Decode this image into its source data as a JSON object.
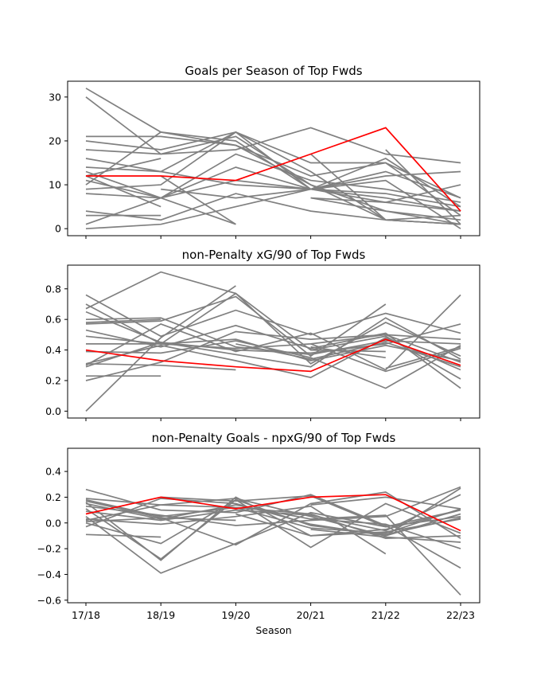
{
  "chart_data": [
    {
      "type": "line",
      "title": "Goals per Season of Top Fwds",
      "xlabel": "",
      "ylabel": "",
      "categories": [
        "17/18",
        "18/19",
        "19/20",
        "20/21",
        "21/22",
        "22/23"
      ],
      "ylim": [
        -1.6,
        33.6
      ],
      "yticks": [
        0,
        10,
        20,
        30
      ],
      "ytick_labels": [
        "0",
        "10",
        "20",
        "30"
      ],
      "show_xtick_labels": false,
      "highlight": {
        "name": "highlighted player",
        "color": "#ff0000",
        "values": [
          12,
          12,
          11,
          17,
          23,
          4
        ]
      },
      "series": [
        {
          "values": [
            32,
            22,
            19,
            10,
            4,
            1
          ]
        },
        {
          "values": [
            30,
            17,
            21,
            10,
            2,
            1
          ]
        },
        {
          "values": [
            21,
            21,
            19,
            12,
            15,
            7
          ]
        },
        {
          "values": [
            20,
            18,
            22,
            9,
            8,
            5
          ]
        },
        {
          "values": [
            18,
            17,
            18,
            23,
            17,
            15
          ]
        },
        {
          "values": [
            16,
            13,
            10,
            9,
            6,
            4
          ]
        },
        {
          "values": [
            14,
            13,
            22,
            15,
            15,
            3
          ]
        },
        {
          "values": [
            13,
            7,
            17,
            11,
            9,
            6
          ]
        },
        {
          "values": [
            12,
            5,
            null,
            null,
            null,
            null
          ]
        },
        {
          "values": [
            11,
            7,
            1,
            null,
            null,
            null
          ]
        },
        {
          "values": [
            10,
            22,
            20,
            9,
            7,
            4
          ]
        },
        {
          "values": [
            9,
            10,
            22,
            13,
            2,
            1
          ]
        },
        {
          "values": [
            8,
            7,
            11,
            9,
            13,
            7
          ]
        },
        {
          "values": [
            4,
            2,
            8,
            4,
            2,
            1
          ]
        },
        {
          "values": [
            3,
            3,
            null,
            null,
            null,
            null
          ]
        },
        {
          "values": [
            1,
            7,
            14,
            9,
            11,
            0
          ]
        },
        {
          "values": [
            0,
            1,
            5,
            9,
            16,
            5
          ]
        },
        {
          "values": [
            12,
            16,
            null,
            null,
            null,
            null
          ]
        },
        {
          "values": [
            null,
            9,
            7,
            9,
            12,
            13
          ]
        },
        {
          "values": [
            null,
            null,
            null,
            7,
            6,
            10
          ]
        },
        {
          "values": [
            null,
            null,
            null,
            7,
            4,
            2
          ]
        },
        {
          "values": [
            null,
            null,
            null,
            17,
            2,
            3
          ]
        },
        {
          "values": [
            null,
            null,
            null,
            null,
            18,
            1
          ]
        },
        {
          "values": [
            null,
            12,
            1,
            null,
            null,
            null
          ]
        }
      ]
    },
    {
      "type": "line",
      "title": "non-Penalty xG/90 of Top Fwds",
      "xlabel": "",
      "ylabel": "",
      "categories": [
        "17/18",
        "18/19",
        "19/20",
        "20/21",
        "21/22",
        "22/23"
      ],
      "ylim": [
        -0.045,
        0.955
      ],
      "yticks": [
        0.0,
        0.2,
        0.4,
        0.6,
        0.8
      ],
      "ytick_labels": [
        "0.0",
        "0.2",
        "0.4",
        "0.6",
        "0.8"
      ],
      "show_xtick_labels": false,
      "highlight": {
        "name": "highlighted player",
        "color": "#ff0000",
        "values": [
          0.4,
          0.33,
          0.29,
          0.26,
          0.47,
          0.3
        ]
      },
      "series": [
        {
          "values": [
            0.76,
            0.49,
            0.66,
            0.5,
            0.64,
            0.51
          ]
        },
        {
          "values": [
            0.7,
            0.44,
            0.77,
            0.4,
            0.49,
            0.21
          ]
        },
        {
          "values": [
            0.67,
            0.91,
            0.77,
            0.31,
            0.58,
            0.36
          ]
        },
        {
          "values": [
            0.65,
            0.45,
            0.37,
            0.29,
            0.61,
            0.34
          ]
        },
        {
          "values": [
            0.6,
            0.61,
            0.42,
            0.37,
            0.46,
            0.44
          ]
        },
        {
          "values": [
            0.58,
            0.6,
            null,
            null,
            null,
            null
          ]
        },
        {
          "values": [
            0.57,
            0.59,
            0.75,
            0.36,
            0.7,
            null
          ]
        },
        {
          "values": [
            0.53,
            0.42,
            0.56,
            0.41,
            0.51,
            0.15
          ]
        },
        {
          "values": [
            0.49,
            0.44,
            0.47,
            0.33,
            0.43,
            0.33
          ]
        },
        {
          "values": [
            0.44,
            0.44,
            0.41,
            0.44,
            0.5,
            0.47
          ]
        },
        {
          "values": [
            0.39,
            0.38,
            0.46,
            0.35,
            0.15,
            0.43
          ]
        },
        {
          "values": [
            0.31,
            0.43,
            0.33,
            0.22,
            0.48,
            0.27
          ]
        },
        {
          "values": [
            0.3,
            0.57,
            0.39,
            0.51,
            0.27,
            0.76
          ]
        },
        {
          "values": [
            0.31,
            0.3,
            0.27,
            null,
            null,
            null
          ]
        },
        {
          "values": [
            0.29,
            0.45,
            0.4,
            0.38,
            0.44,
            0.57
          ]
        },
        {
          "values": [
            0.23,
            0.23,
            null,
            null,
            null,
            null
          ]
        },
        {
          "values": [
            0.2,
            0.32,
            0.52,
            0.47,
            0.5,
            0.32
          ]
        },
        {
          "values": [
            0.0,
            0.48,
            0.82,
            null,
            null,
            null
          ]
        },
        {
          "values": [
            null,
            null,
            null,
            0.44,
            0.26,
            0.41
          ]
        },
        {
          "values": [
            null,
            null,
            null,
            0.42,
            0.35,
            null
          ]
        },
        {
          "values": [
            null,
            null,
            null,
            0.4,
            0.39,
            null
          ]
        },
        {
          "values": [
            null,
            null,
            null,
            null,
            0.28,
            0.42
          ]
        },
        {
          "values": [
            null,
            null,
            0.44,
            0.34,
            0.45,
            0.29
          ]
        }
      ]
    },
    {
      "type": "line",
      "title": "non-Penalty Goals - npxG/90 of Top Fwds",
      "xlabel": "Season",
      "ylabel": "",
      "categories": [
        "17/18",
        "18/19",
        "19/20",
        "20/21",
        "21/22",
        "22/23"
      ],
      "ylim": [
        -0.62,
        0.58
      ],
      "yticks": [
        -0.6,
        -0.4,
        -0.2,
        0.0,
        0.2,
        0.4
      ],
      "ytick_labels": [
        "−0.6",
        "−0.4",
        "−0.2",
        "0.0",
        "0.2",
        "0.4"
      ],
      "show_xtick_labels": true,
      "highlight": {
        "name": "highlighted player",
        "color": "#ff0000",
        "values": [
          0.07,
          0.2,
          0.11,
          0.2,
          0.22,
          -0.06
        ]
      },
      "series": [
        {
          "values": [
            0.26,
            0.1,
            0.08,
            0.22,
            -0.02,
            -0.35
          ]
        },
        {
          "values": [
            0.19,
            0.14,
            0.19,
            0.05,
            -0.1,
            0.27
          ]
        },
        {
          "values": [
            0.18,
            0.05,
            0.12,
            -0.04,
            -0.08,
            0.11
          ]
        },
        {
          "values": [
            0.17,
            0.04,
            -0.17,
            0.15,
            0.24,
            -0.12
          ]
        },
        {
          "values": [
            0.16,
            -0.29,
            0.2,
            -0.1,
            -0.05,
            0.1
          ]
        },
        {
          "values": [
            0.15,
            0.03,
            0.14,
            0.03,
            0.06,
            -0.56
          ]
        },
        {
          "values": [
            0.13,
            0.06,
            -0.02,
            0.02,
            0.05,
            0.28
          ]
        },
        {
          "values": [
            0.11,
            -0.28,
            0.18,
            -0.19,
            0.15,
            -0.08
          ]
        },
        {
          "values": [
            0.09,
            0.02,
            0.1,
            0.06,
            -0.06,
            0.22
          ]
        },
        {
          "values": [
            0.05,
            -0.39,
            -0.16,
            0.08,
            -0.03,
            0.05
          ]
        },
        {
          "values": [
            0.02,
            0.14,
            0.12,
            0.07,
            -0.12,
            -0.1
          ]
        },
        {
          "values": [
            0.01,
            0.04,
            0.02,
            null,
            null,
            null
          ]
        },
        {
          "values": [
            0.0,
            -0.16,
            0.18,
            -0.02,
            -0.09,
            0.04
          ]
        },
        {
          "values": [
            -0.03,
            0.19,
            0.15,
            -0.01,
            -0.1,
            0.07
          ]
        },
        {
          "values": [
            -0.09,
            -0.11,
            null,
            null,
            null,
            null
          ]
        },
        {
          "values": [
            0.03,
            -0.01,
            0.05,
            0.13,
            -0.24,
            null
          ]
        },
        {
          "values": [
            null,
            null,
            null,
            0.14,
            0.2,
            0.11
          ]
        },
        {
          "values": [
            null,
            null,
            null,
            -0.05,
            -0.11,
            -0.15
          ]
        },
        {
          "values": [
            null,
            null,
            null,
            0.03,
            -0.01,
            -0.2
          ]
        },
        {
          "values": [
            null,
            null,
            0.07,
            -0.1,
            -0.07,
            0.03
          ]
        },
        {
          "values": [
            null,
            0.2,
            0.17,
            0.21,
            -0.03,
            0.1
          ]
        }
      ]
    }
  ]
}
